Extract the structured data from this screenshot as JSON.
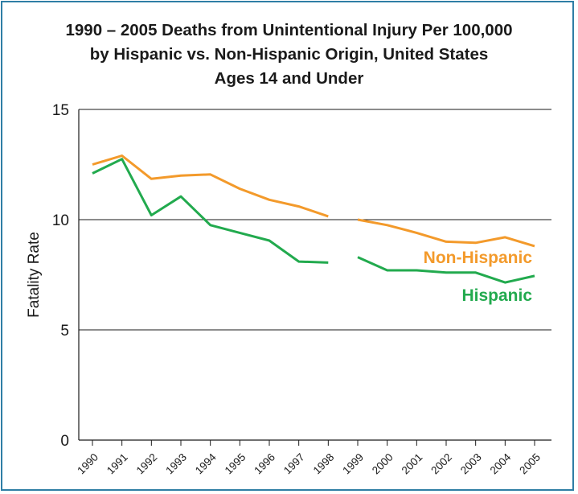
{
  "chart_data": {
    "type": "line",
    "title_lines": [
      "1990 – 2005 Deaths from Unintentional Injury Per 100,000",
      "by Hispanic vs. Non-Hispanic Origin, United States",
      "Ages 14 and Under"
    ],
    "xlabel": "",
    "ylabel": "Fatality Rate",
    "x": [
      "1990",
      "1991",
      "1992",
      "1993",
      "1994",
      "1995",
      "1996",
      "1997",
      "1998",
      "1999",
      "2000",
      "2001",
      "2002",
      "2003",
      "2004",
      "2005"
    ],
    "ylim": [
      0,
      15
    ],
    "yticks": [
      0,
      5,
      10,
      15
    ],
    "grid": true,
    "series": [
      {
        "name": "Non-Hispanic",
        "color": "#f39a2b",
        "values": [
          12.5,
          12.9,
          11.85,
          12.0,
          12.05,
          11.4,
          10.9,
          10.6,
          10.15,
          10.0,
          9.75,
          9.4,
          9.0,
          8.95,
          9.2,
          8.8
        ]
      },
      {
        "name": "Hispanic",
        "color": "#22aa4e",
        "values": [
          12.1,
          12.75,
          10.2,
          11.05,
          9.75,
          9.4,
          9.05,
          8.1,
          8.05,
          8.3,
          7.7,
          7.7,
          7.6,
          7.6,
          7.15,
          7.45
        ]
      }
    ],
    "break_after_index": 8,
    "legend": "inline-right"
  }
}
